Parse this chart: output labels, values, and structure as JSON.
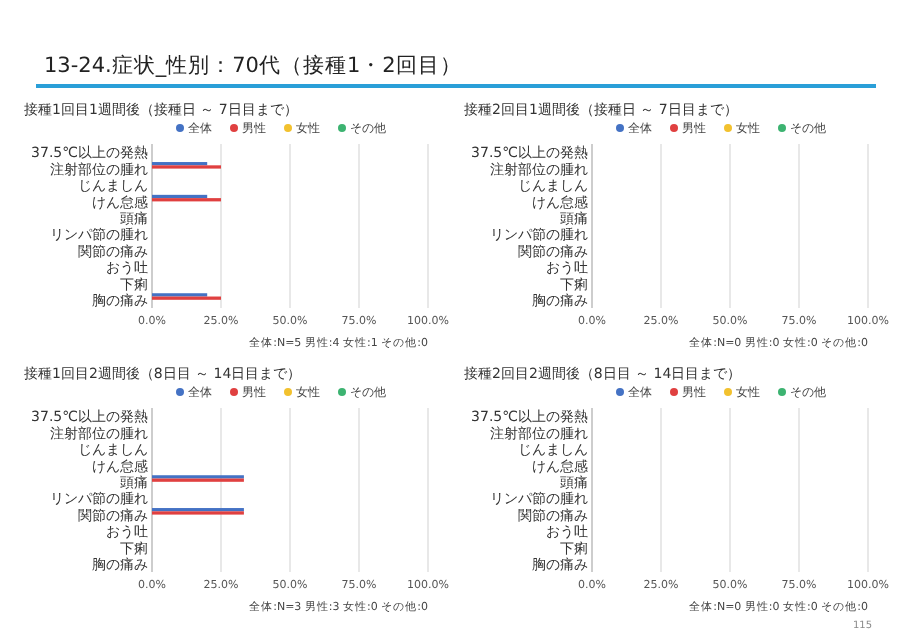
{
  "chart_data": [
    {
      "type": "bar",
      "orientation": "horizontal",
      "title": "接種1回目1週間後（接種日 ～ 7日目まで）",
      "annotations": [
        "13-24.症状_性別：70代（接種1・2回目）",
        "全体:N=5  男性:4  女性:1  その他:0"
      ],
      "categories": [
        "37.5℃以上の発熱",
        "注射部位の腫れ",
        "じんましん",
        "けん怠感",
        "頭痛",
        "リンパ節の腫れ",
        "関節の痛み",
        "おう吐",
        "下痢",
        "胸の痛み"
      ],
      "series": [
        {
          "name": "全体",
          "color": "#4472c4",
          "values": [
            0,
            20,
            0,
            20,
            0,
            0,
            0,
            0,
            0,
            20
          ]
        },
        {
          "name": "男性",
          "color": "#e04040",
          "values": [
            0,
            25,
            0,
            25,
            0,
            0,
            0,
            0,
            0,
            25
          ]
        },
        {
          "name": "女性",
          "color": "#f2c12e",
          "values": [
            0,
            0,
            0,
            0,
            0,
            0,
            0,
            0,
            0,
            0
          ]
        },
        {
          "name": "その他",
          "color": "#3cb371",
          "values": [
            0,
            0,
            0,
            0,
            0,
            0,
            0,
            0,
            0,
            0
          ]
        }
      ],
      "xlim": [
        0,
        100
      ],
      "xticks": [
        {
          "value": 0,
          "label": "0.0%"
        },
        {
          "value": 25,
          "label": "25.0%"
        },
        {
          "value": 50,
          "label": "50.0%"
        },
        {
          "value": 75,
          "label": "75.0%"
        },
        {
          "value": 100,
          "label": "100.0%"
        }
      ],
      "grid": "x",
      "legend": "top"
    },
    {
      "type": "bar",
      "orientation": "horizontal",
      "title": "接種2回目1週間後（接種日 ～ 7日目まで）",
      "annotations": [
        "全体:N=0  男性:0  女性:0  その他:0"
      ],
      "categories": [
        "37.5℃以上の発熱",
        "注射部位の腫れ",
        "じんましん",
        "けん怠感",
        "頭痛",
        "リンパ節の腫れ",
        "関節の痛み",
        "おう吐",
        "下痢",
        "胸の痛み"
      ],
      "series": [
        {
          "name": "全体",
          "color": "#4472c4",
          "values": [
            0,
            0,
            0,
            0,
            0,
            0,
            0,
            0,
            0,
            0
          ]
        },
        {
          "name": "男性",
          "color": "#e04040",
          "values": [
            0,
            0,
            0,
            0,
            0,
            0,
            0,
            0,
            0,
            0
          ]
        },
        {
          "name": "女性",
          "color": "#f2c12e",
          "values": [
            0,
            0,
            0,
            0,
            0,
            0,
            0,
            0,
            0,
            0
          ]
        },
        {
          "name": "その他",
          "color": "#3cb371",
          "values": [
            0,
            0,
            0,
            0,
            0,
            0,
            0,
            0,
            0,
            0
          ]
        }
      ],
      "xlim": [
        0,
        100
      ],
      "xticks": [
        {
          "value": 0,
          "label": "0.0%"
        },
        {
          "value": 25,
          "label": "25.0%"
        },
        {
          "value": 50,
          "label": "50.0%"
        },
        {
          "value": 75,
          "label": "75.0%"
        },
        {
          "value": 100,
          "label": "100.0%"
        }
      ],
      "grid": "x",
      "legend": "top"
    },
    {
      "type": "bar",
      "orientation": "horizontal",
      "title": "接種1回目2週間後（8日目 ～ 14日目まで）",
      "annotations": [
        "全体:N=3  男性:3  女性:0  その他:0"
      ],
      "categories": [
        "37.5℃以上の発熱",
        "注射部位の腫れ",
        "じんましん",
        "けん怠感",
        "頭痛",
        "リンパ節の腫れ",
        "関節の痛み",
        "おう吐",
        "下痢",
        "胸の痛み"
      ],
      "series": [
        {
          "name": "全体",
          "color": "#4472c4",
          "values": [
            0,
            0,
            0,
            0,
            33.3,
            0,
            33.3,
            0,
            0,
            0
          ]
        },
        {
          "name": "男性",
          "color": "#e04040",
          "values": [
            0,
            0,
            0,
            0,
            33.3,
            0,
            33.3,
            0,
            0,
            0
          ]
        },
        {
          "name": "女性",
          "color": "#f2c12e",
          "values": [
            0,
            0,
            0,
            0,
            0,
            0,
            0,
            0,
            0,
            0
          ]
        },
        {
          "name": "その他",
          "color": "#3cb371",
          "values": [
            0,
            0,
            0,
            0,
            0,
            0,
            0,
            0,
            0,
            0
          ]
        }
      ],
      "xlim": [
        0,
        100
      ],
      "xticks": [
        {
          "value": 0,
          "label": "0.0%"
        },
        {
          "value": 25,
          "label": "25.0%"
        },
        {
          "value": 50,
          "label": "50.0%"
        },
        {
          "value": 75,
          "label": "75.0%"
        },
        {
          "value": 100,
          "label": "100.0%"
        }
      ],
      "grid": "x",
      "legend": "top"
    },
    {
      "type": "bar",
      "orientation": "horizontal",
      "title": "接種2回目2週間後（8日目 ～ 14日目まで）",
      "annotations": [
        "全体:N=0  男性:0  女性:0  その他:0",
        "115"
      ],
      "categories": [
        "37.5℃以上の発熱",
        "注射部位の腫れ",
        "じんましん",
        "けん怠感",
        "頭痛",
        "リンパ節の腫れ",
        "関節の痛み",
        "おう吐",
        "下痢",
        "胸の痛み"
      ],
      "series": [
        {
          "name": "全体",
          "color": "#4472c4",
          "values": [
            0,
            0,
            0,
            0,
            0,
            0,
            0,
            0,
            0,
            0
          ]
        },
        {
          "name": "男性",
          "color": "#e04040",
          "values": [
            0,
            0,
            0,
            0,
            0,
            0,
            0,
            0,
            0,
            0
          ]
        },
        {
          "name": "女性",
          "color": "#f2c12e",
          "values": [
            0,
            0,
            0,
            0,
            0,
            0,
            0,
            0,
            0,
            0
          ]
        },
        {
          "name": "その他",
          "color": "#3cb371",
          "values": [
            0,
            0,
            0,
            0,
            0,
            0,
            0,
            0,
            0,
            0
          ]
        }
      ],
      "xlim": [
        0,
        100
      ],
      "xticks": [
        {
          "value": 0,
          "label": "0.0%"
        },
        {
          "value": 25,
          "label": "25.0%"
        },
        {
          "value": 50,
          "label": "50.0%"
        },
        {
          "value": 75,
          "label": "75.0%"
        },
        {
          "value": 100,
          "label": "100.0%"
        }
      ],
      "grid": "x",
      "legend": "top"
    }
  ]
}
